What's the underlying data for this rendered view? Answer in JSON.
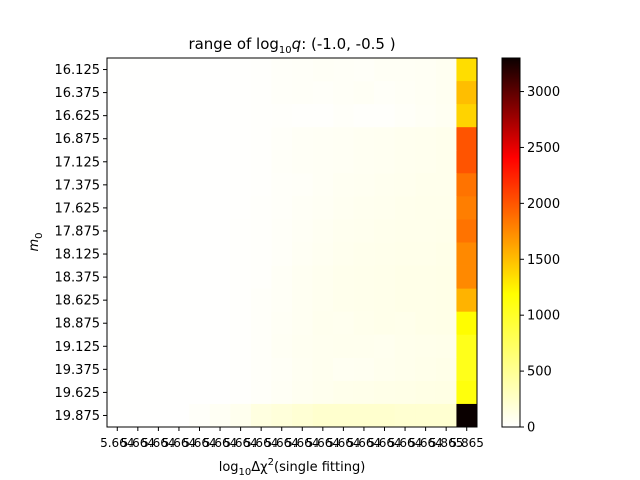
{
  "chart_data": {
    "type": "heatmap",
    "title_main": "range of log",
    "title_sub": "10",
    "title_var": "q",
    "title_suffix": ": (-1.0, -0.5 )",
    "ylabel_main": "m",
    "ylabel_sub": "0",
    "xlabel_main": "log",
    "xlabel_sub": "10",
    "xlabel_delta": "Δχ",
    "xlabel_sup": "2",
    "xlabel_suffix": "(single fitting)",
    "y_ticks": [
      "16.125",
      "16.375",
      "16.625",
      "16.875",
      "17.125",
      "17.375",
      "17.625",
      "17.875",
      "18.125",
      "18.375",
      "18.625",
      "18.875",
      "19.125",
      "19.375",
      "19.625",
      "19.875"
    ],
    "x_ticks": [
      "5.664",
      "5.664",
      "5.664",
      "5.664",
      "5.664",
      "5.664",
      "5.664",
      "5.664",
      "5.664",
      "5.664",
      "5.664",
      "5.664",
      "5.664",
      "5.664",
      "5.664",
      "5.664",
      "5.865",
      "5.865"
    ],
    "x_ticks_shown": [
      "5.664",
      "5.865"
    ],
    "colorbar": {
      "colormap": "hot_r",
      "vmin": 0,
      "vmax": 3300,
      "ticks": [
        "0",
        "500",
        "1000",
        "1500",
        "2000",
        "2500",
        "3000"
      ],
      "tick_values": [
        0,
        500,
        1000,
        1500,
        2000,
        2500,
        3000
      ]
    },
    "values": [
      [
        2,
        2,
        2,
        2,
        3,
        5,
        8,
        12,
        20,
        25,
        30,
        28,
        25,
        35,
        35,
        40,
        50,
        1050
      ],
      [
        2,
        2,
        2,
        2,
        3,
        5,
        8,
        12,
        20,
        25,
        20,
        28,
        35,
        25,
        30,
        40,
        50,
        1200
      ],
      [
        2,
        2,
        2,
        2,
        3,
        5,
        8,
        12,
        15,
        10,
        10,
        20,
        15,
        15,
        25,
        35,
        45,
        1100
      ],
      [
        2,
        2,
        2,
        2,
        3,
        5,
        8,
        12,
        20,
        30,
        35,
        40,
        45,
        50,
        55,
        60,
        65,
        1700
      ],
      [
        2,
        2,
        2,
        2,
        3,
        5,
        8,
        12,
        25,
        30,
        35,
        40,
        45,
        50,
        55,
        60,
        65,
        1700
      ],
      [
        2,
        2,
        2,
        2,
        3,
        5,
        8,
        12,
        20,
        25,
        35,
        45,
        50,
        55,
        60,
        65,
        65,
        1550
      ],
      [
        2,
        2,
        2,
        2,
        3,
        5,
        8,
        15,
        20,
        30,
        40,
        50,
        55,
        60,
        65,
        70,
        70,
        1500
      ],
      [
        2,
        2,
        2,
        2,
        3,
        5,
        10,
        15,
        25,
        35,
        45,
        55,
        60,
        65,
        70,
        70,
        75,
        1550
      ],
      [
        2,
        2,
        2,
        2,
        3,
        5,
        10,
        15,
        25,
        40,
        50,
        60,
        65,
        70,
        75,
        75,
        80,
        1450
      ],
      [
        2,
        2,
        2,
        2,
        3,
        5,
        10,
        15,
        30,
        45,
        55,
        65,
        70,
        75,
        80,
        80,
        85,
        1450
      ],
      [
        2,
        2,
        2,
        2,
        3,
        5,
        10,
        20,
        30,
        45,
        55,
        65,
        70,
        75,
        80,
        80,
        85,
        1250
      ],
      [
        2,
        2,
        2,
        2,
        3,
        5,
        10,
        20,
        35,
        45,
        60,
        55,
        65,
        75,
        70,
        80,
        85,
        900
      ],
      [
        2,
        2,
        2,
        2,
        3,
        5,
        10,
        20,
        40,
        50,
        55,
        60,
        60,
        55,
        65,
        70,
        75,
        800
      ],
      [
        2,
        2,
        2,
        2,
        3,
        5,
        10,
        20,
        30,
        45,
        55,
        45,
        50,
        60,
        65,
        75,
        80,
        800
      ],
      [
        2,
        2,
        2,
        2,
        3,
        5,
        10,
        20,
        35,
        50,
        60,
        70,
        75,
        80,
        85,
        90,
        95,
        850
      ],
      [
        2,
        2,
        2,
        2,
        20,
        40,
        60,
        110,
        130,
        150,
        170,
        170,
        170,
        170,
        160,
        160,
        160,
        3300
      ]
    ]
  }
}
